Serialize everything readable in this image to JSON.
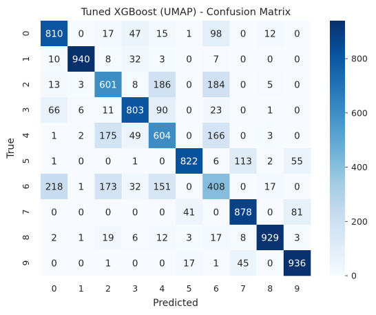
{
  "chart_data": {
    "type": "heatmap",
    "title": "Tuned XGBoost (UMAP) - Confusion Matrix",
    "xlabel": "Predicted",
    "ylabel": "True",
    "x_categories": [
      "0",
      "1",
      "2",
      "3",
      "4",
      "5",
      "6",
      "7",
      "8",
      "9"
    ],
    "y_categories": [
      "0",
      "1",
      "2",
      "3",
      "4",
      "5",
      "6",
      "7",
      "8",
      "9"
    ],
    "values": [
      [
        810,
        0,
        17,
        47,
        15,
        1,
        98,
        0,
        12,
        0
      ],
      [
        10,
        940,
        8,
        32,
        3,
        0,
        7,
        0,
        0,
        0
      ],
      [
        13,
        3,
        601,
        8,
        186,
        0,
        184,
        0,
        5,
        0
      ],
      [
        66,
        6,
        11,
        803,
        90,
        0,
        23,
        0,
        1,
        0
      ],
      [
        1,
        2,
        175,
        49,
        604,
        0,
        166,
        0,
        3,
        0
      ],
      [
        1,
        0,
        0,
        1,
        0,
        822,
        6,
        113,
        2,
        55
      ],
      [
        218,
        1,
        173,
        32,
        151,
        0,
        408,
        0,
        17,
        0
      ],
      [
        0,
        0,
        0,
        0,
        0,
        41,
        0,
        878,
        0,
        81
      ],
      [
        2,
        1,
        19,
        6,
        12,
        3,
        17,
        8,
        929,
        3
      ],
      [
        0,
        0,
        1,
        0,
        0,
        17,
        1,
        45,
        0,
        936
      ]
    ],
    "colorbar": {
      "min": 0,
      "max": 940,
      "ticks": [
        0,
        200,
        400,
        600,
        800
      ],
      "colormap": "Blues",
      "low_color": "#f7fbff",
      "high_color": "#08306b"
    }
  }
}
